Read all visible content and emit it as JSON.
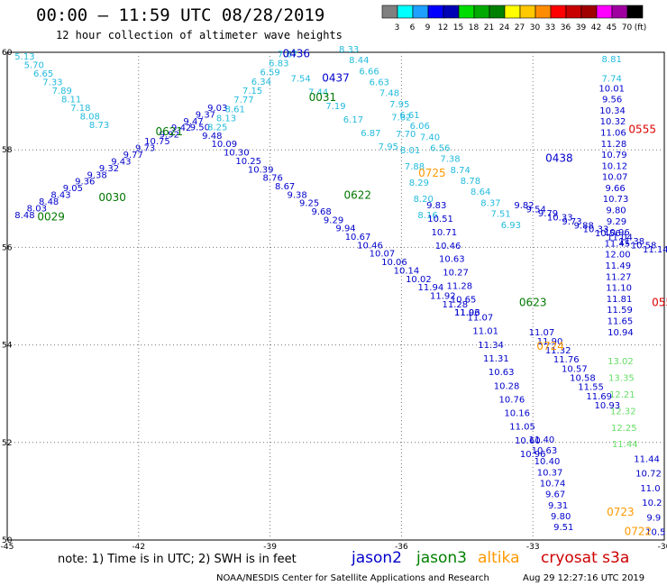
{
  "header": {
    "title": "00:00 – 11:59 UTC 08/28/2019",
    "subtitle": "12 hour collection of altimeter wave heights"
  },
  "colorbar": {
    "colors": [
      "#808080",
      "#00ffff",
      "#1ea0ff",
      "#0000ff",
      "#0000b4",
      "#00dc00",
      "#00aa00",
      "#008000",
      "#ffff00",
      "#ffc800",
      "#ff8c00",
      "#ff0000",
      "#c80000",
      "#a00000",
      "#ff00ff",
      "#a000a0",
      "#000000"
    ],
    "labels": [
      "3",
      "6",
      "9",
      "12",
      "15",
      "18",
      "21",
      "24",
      "27",
      "30",
      "33",
      "36",
      "39",
      "42",
      "45",
      "70",
      "(ft)"
    ]
  },
  "legend": {
    "note": "note: 1) Time is in UTC; 2) SWH is in feet",
    "sat1": "jason2",
    "sat1_color": "#0000cc",
    "sat2": "jason3",
    "sat2_color": "#008000",
    "sat3": "altika",
    "sat3_color": "#ff9900",
    "sat4": "cryosat s3a",
    "sat4_color": "#cc0000"
  },
  "footer": {
    "left": "NOAA/NESDIS Center for Satellite Applications and Research",
    "right": "Aug 29 12:27:16 UTC 2019"
  },
  "chart_data": {
    "type": "scatter",
    "xlim": [
      -45,
      -30
    ],
    "ylim": [
      50,
      60
    ],
    "xticks": [
      "-45",
      "-42",
      "-39",
      "-36",
      "-33",
      "-30"
    ],
    "yticks": [
      "50",
      "52",
      "54",
      "56",
      "58",
      "60"
    ],
    "grid": true,
    "colors": {
      "cyan": "#22bbdd",
      "blue": "#0000cc",
      "green": "#007700",
      "orange": "#ff9900",
      "red": "#dd0000",
      "lightgreen": "#66dd66"
    },
    "tracks": [
      {
        "c": "cyan",
        "lon1": -44.6,
        "lat1": 59.85,
        "lon2": -42.9,
        "lat2": 58.45,
        "values": [
          "5.13",
          "5.70",
          "6.65",
          "7.33",
          "7.89",
          "8.11",
          "7.18",
          "8.08",
          "8.73"
        ]
      },
      {
        "c": "blue",
        "lon1": -44.6,
        "lat1": 56.6,
        "lon2": -40.2,
        "lat2": 58.8,
        "values": [
          "8.48",
          "8.03",
          "8.48",
          "8.43",
          "9.05",
          "9.36",
          "9.38",
          "9.32",
          "9.43",
          "9.77",
          "9.73",
          "10.75",
          "9.92",
          "9.42",
          "9.47",
          "9.37",
          "9.03"
        ]
      },
      {
        "c": "blue",
        "lon1": -40.6,
        "lat1": 58.4,
        "lon2": -34.5,
        "lat2": 54.6,
        "values": [
          "9.50",
          "9.48",
          "10.09",
          "10.30",
          "10.25",
          "10.39",
          "8.76",
          "8.67",
          "9.38",
          "9.25",
          "9.68",
          "9.29",
          "9.94",
          "10.67",
          "10.46",
          "10.07",
          "10.06",
          "10.14",
          "10.02",
          "11.94",
          "11.92",
          "11.28",
          "11.96"
        ]
      },
      {
        "c": "cyan",
        "lon1": -40.2,
        "lat1": 58.4,
        "lon2": -38.6,
        "lat2": 59.9,
        "values": [
          "8.25",
          "8.13",
          "8.61",
          "7.77",
          "7.15",
          "6.34",
          "6.59",
          "6.83",
          "7.67"
        ]
      },
      {
        "c": "cyan",
        "lon1": -37.2,
        "lat1": 60.0,
        "lon2": -33.5,
        "lat2": 56.4,
        "values": [
          "8.33",
          "8.44",
          "6.66",
          "6.63",
          "7.48",
          "7.95",
          "6.61",
          "6.06",
          "7.40",
          "6.56",
          "7.38",
          "8.74",
          "8.78",
          "8.64",
          "8.37",
          "7.51",
          "6.93"
        ]
      },
      {
        "c": "cyan",
        "lon1": -38.3,
        "lat1": 59.4,
        "lon2": -36.3,
        "lat2": 58.0,
        "values": [
          "7.54",
          "7.44",
          "7.19",
          "6.17",
          "6.87",
          "7.95"
        ]
      },
      {
        "c": "cyan",
        "lon1": -36.0,
        "lat1": 58.6,
        "lon2": -35.4,
        "lat2": 56.6,
        "values": [
          "7.62",
          "7.70",
          "8.01",
          "7.88",
          "8.29",
          "8.20",
          "8.16"
        ]
      },
      {
        "c": "blue",
        "lon1": -35.2,
        "lat1": 56.8,
        "lon2": -34.5,
        "lat2": 54.6,
        "values": [
          "9.83",
          "10.51",
          "10.71",
          "10.46",
          "10.63",
          "10.27",
          "11.28",
          "10.65",
          "11.03"
        ]
      },
      {
        "c": "blue",
        "lon1": -33.2,
        "lat1": 56.8,
        "lon2": -30.2,
        "lat2": 55.9,
        "values": [
          "9.82",
          "9.54",
          "9.79",
          "10.33",
          "9.73",
          "9.88",
          "10.33",
          "10.56",
          "11.04",
          "11.38",
          "10.58",
          "11.14"
        ]
      },
      {
        "c": "cyan",
        "lon1": -31.2,
        "lat1": 59.8,
        "lon2": -31.2,
        "lat2": 59.4,
        "values": [
          "8.81",
          "7.74"
        ]
      },
      {
        "c": "blue",
        "lon1": -31.2,
        "lat1": 59.2,
        "lon2": -31.0,
        "lat2": 54.2,
        "values": [
          "10.01",
          "9.56",
          "10.34",
          "10.32",
          "11.06",
          "11.28",
          "10.79",
          "10.12",
          "10.07",
          "9.66",
          "10.73",
          "9.80",
          "9.29",
          "10.96",
          "11.45",
          "12.00",
          "11.49",
          "11.27",
          "11.10",
          "11.81",
          "11.59",
          "11.65",
          "10.94"
        ]
      },
      {
        "c": "lightgreen",
        "lon1": -31.0,
        "lat1": 53.6,
        "lon2": -30.9,
        "lat2": 51.9,
        "values": [
          "13.02",
          "13.35",
          "12.21",
          "12.32",
          "12.25",
          "11.44"
        ]
      },
      {
        "c": "blue",
        "lon1": -34.2,
        "lat1": 54.5,
        "lon2": -33.0,
        "lat2": 51.7,
        "values": [
          "11.07",
          "11.01",
          "11.34",
          "11.31",
          "10.63",
          "10.28",
          "10.76",
          "10.16",
          "11.05",
          "10.60",
          "10.96"
        ]
      },
      {
        "c": "blue",
        "lon1": -32.8,
        "lat1": 54.2,
        "lon2": -31.3,
        "lat2": 52.7,
        "values": [
          "11.07",
          "11.90",
          "11.32",
          "11.76",
          "10.57",
          "10.58",
          "11.55",
          "11.69",
          "10.93"
        ]
      },
      {
        "c": "blue",
        "lon1": -32.8,
        "lat1": 52.0,
        "lon2": -32.3,
        "lat2": 50.2,
        "values": [
          "11.40",
          "10.63",
          "10.40",
          "10.37",
          "10.74",
          "9.67",
          "9.31",
          "9.80",
          "9.51"
        ]
      },
      {
        "c": "blue",
        "lon1": -30.4,
        "lat1": 51.6,
        "lon2": -30.2,
        "lat2": 50.1,
        "values": [
          "11.44",
          "10.72",
          "11.0",
          "10.2",
          "9.9",
          "10.5"
        ]
      }
    ],
    "time_labels": [
      {
        "t": "0436",
        "c": "blue",
        "lon": -38.4,
        "lat": 59.9
      },
      {
        "t": "0437",
        "c": "blue",
        "lon": -37.5,
        "lat": 59.4
      },
      {
        "t": "0031",
        "c": "green",
        "lon": -37.8,
        "lat": 59.0
      },
      {
        "t": "0621",
        "c": "green",
        "lon": -41.3,
        "lat": 58.3
      },
      {
        "t": "0030",
        "c": "green",
        "lon": -42.6,
        "lat": 56.95
      },
      {
        "t": "0029",
        "c": "green",
        "lon": -44.0,
        "lat": 56.55
      },
      {
        "t": "0622",
        "c": "green",
        "lon": -37.0,
        "lat": 57.0
      },
      {
        "t": "0725",
        "c": "orange",
        "lon": -35.3,
        "lat": 57.45
      },
      {
        "t": "0438",
        "c": "blue",
        "lon": -32.4,
        "lat": 57.75
      },
      {
        "t": "0555",
        "c": "red",
        "lon": -30.5,
        "lat": 58.35
      },
      {
        "t": "0623",
        "c": "green",
        "lon": -33.0,
        "lat": 54.8
      },
      {
        "t": "0724",
        "c": "orange",
        "lon": -32.6,
        "lat": 53.9
      },
      {
        "t": "0723",
        "c": "orange",
        "lon": -31.0,
        "lat": 50.5
      },
      {
        "t": "0722",
        "c": "orange",
        "lon": -30.6,
        "lat": 50.1
      },
      {
        "t": "055",
        "c": "red",
        "lon": -30.05,
        "lat": 54.8
      }
    ]
  }
}
